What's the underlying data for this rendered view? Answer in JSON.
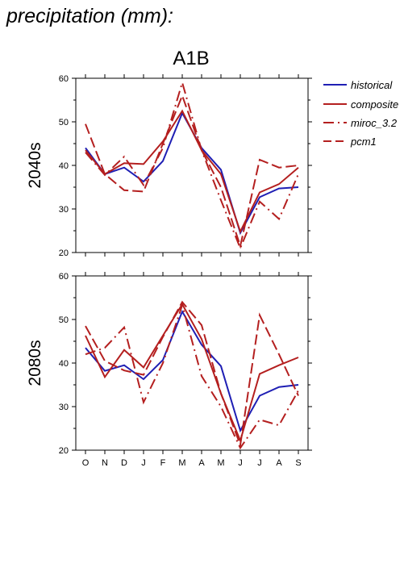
{
  "page_title": "precipitation (mm):",
  "chart_title": "A1B",
  "legend": {
    "historical": "historical",
    "composite": "composite",
    "miroc": "miroc_3.2",
    "pcm1": "pcm1"
  },
  "colors": {
    "historical": "#1f1fb4",
    "scenario": "#b41f1f"
  },
  "chart_data": [
    {
      "type": "line",
      "panel_label": "2040s",
      "categories": [
        "O",
        "N",
        "D",
        "J",
        "F",
        "M",
        "A",
        "M",
        "J",
        "J",
        "A",
        "S"
      ],
      "ylim": [
        20,
        60
      ],
      "yticks": [
        20,
        30,
        40,
        50,
        60
      ],
      "series": [
        {
          "name": "historical",
          "style": "solid",
          "color": "#1f1fb4",
          "values": [
            44,
            38,
            39.5,
            36.3,
            41,
            52,
            44,
            39,
            24.5,
            32.7,
            34.7,
            35
          ]
        },
        {
          "name": "composite",
          "style": "solid",
          "color": "#b41f1f",
          "values": [
            43.5,
            38,
            40.5,
            40.3,
            45.5,
            52.5,
            43.5,
            38,
            24.8,
            33.8,
            35.7,
            39.5
          ]
        },
        {
          "name": "miroc_3.2",
          "style": "dashdot",
          "color": "#b41f1f",
          "values": [
            43,
            37.8,
            42,
            35.5,
            44,
            59,
            43.5,
            32,
            21,
            31.7,
            27.7,
            38
          ]
        },
        {
          "name": "pcm1",
          "style": "dash",
          "color": "#b41f1f",
          "values": [
            49.5,
            38,
            34.3,
            34,
            45,
            56,
            43.5,
            35,
            21.5,
            41.3,
            39.5,
            40
          ]
        }
      ]
    },
    {
      "type": "line",
      "panel_label": "2080s",
      "categories": [
        "O",
        "N",
        "D",
        "J",
        "F",
        "M",
        "A",
        "M",
        "J",
        "J",
        "A",
        "S"
      ],
      "ylim": [
        20,
        60
      ],
      "yticks": [
        20,
        30,
        40,
        50,
        60
      ],
      "series": [
        {
          "name": "historical",
          "style": "solid",
          "color": "#1f1fb4",
          "values": [
            43.5,
            38.2,
            39.5,
            36.3,
            40.7,
            51.8,
            44.2,
            39.3,
            24.5,
            32.5,
            34.5,
            35
          ]
        },
        {
          "name": "composite",
          "style": "solid",
          "color": "#b41f1f",
          "values": [
            46.3,
            36.8,
            43,
            39,
            46.3,
            53.5,
            45.5,
            33,
            22.2,
            37.5,
            39.5,
            41.3
          ]
        },
        {
          "name": "miroc_3.2",
          "style": "dashdot",
          "color": "#b41f1f",
          "values": [
            42,
            43.5,
            48.2,
            31,
            40,
            53.3,
            37,
            30,
            20.5,
            27,
            25.7,
            33.7
          ]
        },
        {
          "name": "pcm1",
          "style": "dash",
          "color": "#b41f1f",
          "values": [
            48.5,
            40.5,
            38.3,
            37.3,
            46,
            54,
            48.7,
            33,
            21.2,
            51,
            42,
            32.5
          ]
        }
      ]
    }
  ]
}
